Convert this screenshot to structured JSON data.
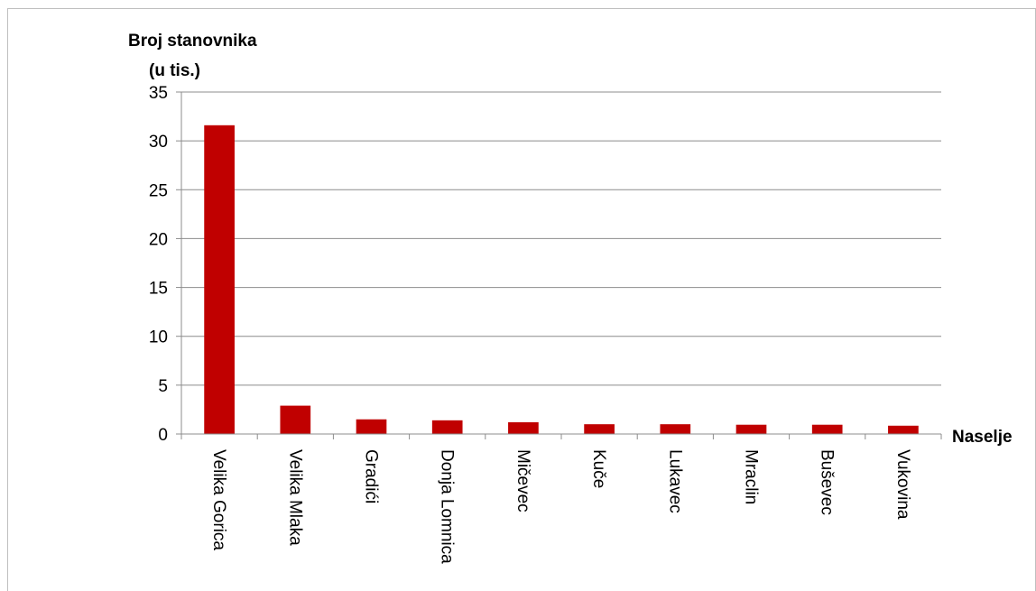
{
  "chart_data": {
    "type": "bar",
    "ylabel_line1": "Broj stanovnika",
    "ylabel_line2": "(u tis.)",
    "xlabel": "Naselje",
    "categories": [
      "Velika Gorica",
      "Velika Mlaka",
      "Gradići",
      "Donja Lomnica",
      "Mičevec",
      "Kuče",
      "Lukavec",
      "Mraclin",
      "Buševec",
      "Vukovina"
    ],
    "values": [
      31.6,
      2.9,
      1.5,
      1.4,
      1.2,
      1.0,
      1.0,
      0.95,
      0.95,
      0.85
    ],
    "ylim": [
      0,
      35
    ],
    "yticks": [
      "0",
      "5",
      "10",
      "15",
      "20",
      "25",
      "30",
      "35"
    ],
    "grid": true,
    "bar_color": "#c00000"
  }
}
